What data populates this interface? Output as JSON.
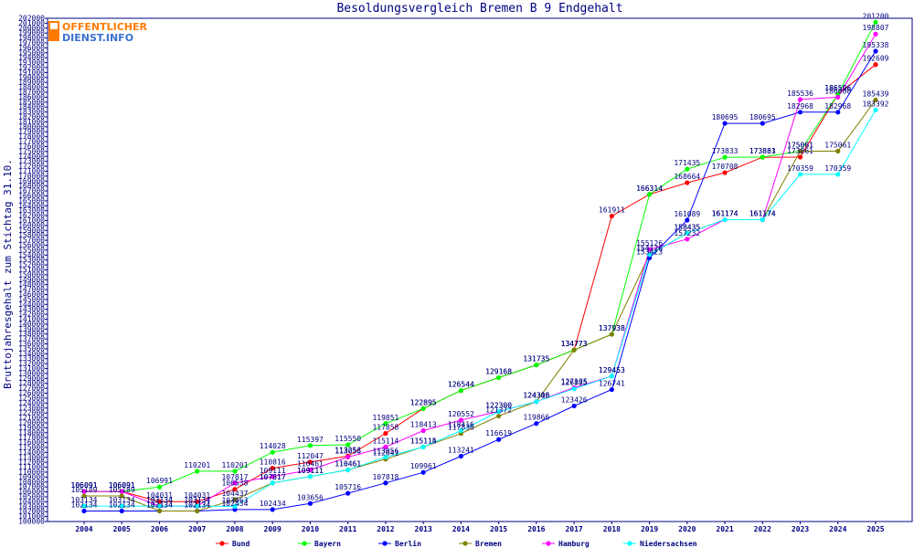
{
  "logo": {
    "line1": "OFFENTLICHER",
    "line2": "DIENST.INFO",
    "accent": "#ff7a00",
    "accent2": "#3a6fd0"
  },
  "chart_data": {
    "type": "line",
    "title": "Besoldungsvergleich Bremen B 9 Endgehalt",
    "ylabel": "Bruttojahresgehalt zum Stichtag 31.10.",
    "xlabel": "",
    "x": [
      "2004",
      "2005",
      "2006",
      "2007",
      "2008",
      "2009",
      "2010",
      "2011",
      "2012",
      "2013",
      "2014",
      "2015",
      "2016",
      "2017",
      "2018",
      "2019",
      "2020",
      "2021",
      "2022",
      "2023",
      "2024",
      "2025"
    ],
    "ylim": [
      100000,
      202000
    ],
    "ytick_step": 1000,
    "grid": false,
    "legend_position": "bottom",
    "series": [
      {
        "name": "Bund",
        "color": "#ff0000",
        "values": [
          106091,
          106091,
          104031,
          104031,
          106538,
          110816,
          112047,
          113253,
          117858,
          122895,
          126544,
          129168,
          131735,
          134773,
          161911,
          166314,
          168664,
          170708,
          173833,
          173861,
          186596,
          192609
        ]
      },
      {
        "name": "Bayern",
        "color": "#00ff00",
        "values": [
          106091,
          106091,
          106991,
          110201,
          110201,
          114028,
          115397,
          115550,
          119851,
          122895,
          126544,
          129168,
          131735,
          134773,
          137938,
          166314,
          171435,
          173833,
          173861,
          175061,
          186596,
          201200
        ]
      },
      {
        "name": "Berlin",
        "color": "#0000ff",
        "values": [
          102134,
          102134,
          102134,
          102134,
          102434,
          102434,
          103656,
          105716,
          107818,
          109961,
          113241,
          116619,
          119866,
          123426,
          126741,
          153423,
          161089,
          180695,
          180695,
          182968,
          182968,
          195338
        ]
      },
      {
        "name": "Bremen",
        "color": "#808000",
        "values": [
          105189,
          105189,
          102134,
          102134,
          104437,
          107817,
          109111,
          110461,
          112641,
          115115,
          117836,
          121372,
          124313,
          134773,
          137938,
          154126,
          158435,
          161174,
          161174,
          175061,
          175061,
          185439
        ]
      },
      {
        "name": "Hamburg",
        "color": "#ff00ff",
        "values": [
          106091,
          106091,
          103134,
          103134,
          107817,
          109111,
          110461,
          113056,
          115114,
          118413,
          120552,
          122300,
          124306,
          127135,
          129453,
          155126,
          157232,
          161174,
          161174,
          185536,
          186000,
          198807
        ]
      },
      {
        "name": "Niedersachsen",
        "color": "#00ffff",
        "values": [
          103134,
          103134,
          103134,
          103134,
          103063,
          107817,
          109111,
          110461,
          113056,
          115114,
          118416,
          122300,
          124306,
          126895,
          129453,
          154126,
          158435,
          161174,
          161174,
          170359,
          170359,
          183392
        ]
      }
    ],
    "data_labels": {
      "Bund": [
        "106091",
        "106091",
        "104031",
        "104031",
        "106538",
        "110816",
        "112047",
        "113253",
        "117858",
        "122895",
        "126544",
        "129168",
        "131735",
        "134773",
        "161911",
        "166314",
        "168664",
        "170708",
        "173833",
        "173861",
        "186596",
        "192609"
      ],
      "Bayern": [
        "106091",
        "106091",
        "106991",
        "110201",
        "110201",
        "114028",
        "115397",
        "115550",
        "119851",
        "122895",
        "126544",
        "129168",
        "131735",
        "134773",
        "137938",
        "166314",
        "171435",
        "173833",
        "173861",
        "175061",
        "186596",
        "201200"
      ],
      "Berlin": [
        "102134",
        "102134",
        "102134",
        "102134",
        "102434",
        "102434",
        "103656",
        "105716",
        "107818",
        "109961",
        "113241",
        "116619",
        "119866",
        "123426",
        "126741",
        "153423",
        "161089",
        "180695",
        "180695",
        "182968",
        "182968",
        "195338"
      ],
      "Bremen": [
        "105189",
        "105189",
        "102134",
        "102134",
        "104437",
        "107817",
        "109111",
        "110461",
        "112641",
        "115115",
        "117836",
        "121372",
        "124313",
        "134773",
        "137938",
        "154126",
        "158435",
        "161174",
        "161174",
        "175061",
        "175061",
        "185439"
      ],
      "Hamburg": [
        "106091",
        "106091",
        "103134",
        "103134",
        "107817",
        "109111",
        "110461",
        "113056",
        "115114",
        "118413",
        "120552",
        "122300",
        "124306",
        "127135",
        "129453",
        "155126",
        "157232",
        "161174",
        "161174",
        "185536",
        "186000",
        "198807"
      ],
      "Niedersachsen": [
        "103134",
        "103134",
        "103134",
        "103134",
        "103063",
        "107817",
        "109111",
        "110461",
        "113056",
        "115114",
        "118416",
        "122300",
        "124306",
        "126895",
        "129453",
        "154126",
        "158435",
        "161174",
        "161174",
        "170359",
        "170359",
        "183392"
      ]
    }
  }
}
